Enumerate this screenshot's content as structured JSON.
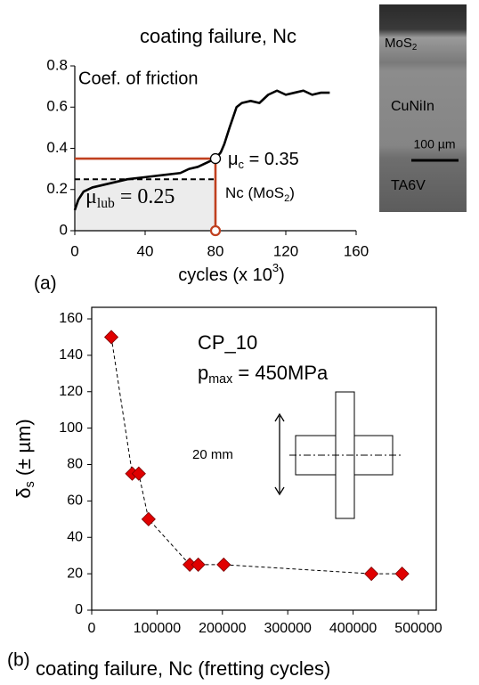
{
  "chart_data": [
    {
      "type": "line",
      "title": "coating failure, Nc",
      "y_label": "Coef. of friction",
      "x_label": [
        "cycles (x 10",
        {
          "text": "3",
          "script": "sup"
        },
        ")"
      ],
      "panel_label": "(a)",
      "xlim": [
        0,
        160
      ],
      "xticks": [
        0,
        40,
        80,
        120,
        160
      ],
      "ylim": [
        0,
        0.8
      ],
      "yticks": [
        0,
        0.2,
        0.4,
        0.6,
        0.8
      ],
      "x": [
        0,
        2,
        5,
        10,
        20,
        30,
        40,
        50,
        60,
        65,
        70,
        75,
        80,
        83,
        85,
        88,
        90,
        92,
        95,
        100,
        105,
        110,
        115,
        120,
        125,
        130,
        135,
        140,
        145
      ],
      "values": [
        0.1,
        0.15,
        0.19,
        0.21,
        0.23,
        0.25,
        0.26,
        0.27,
        0.28,
        0.3,
        0.31,
        0.33,
        0.35,
        0.38,
        0.42,
        0.5,
        0.55,
        0.6,
        0.62,
        0.63,
        0.62,
        0.66,
        0.68,
        0.66,
        0.67,
        0.68,
        0.66,
        0.67,
        0.67
      ],
      "color": "#000000",
      "failure": {
        "x": 80,
        "y": 0.35,
        "color": "#c0401f",
        "label": [
          "μ",
          {
            "text": "c",
            "script": "sub"
          },
          " = 0.35"
        ],
        "marker_label": [
          "Nc (MoS",
          {
            "text": "2",
            "script": "sub"
          },
          ")"
        ]
      },
      "lubrication": {
        "y": 0.25,
        "label": [
          "μ",
          {
            "text": "lub",
            "script": "sub"
          },
          " = 0.25"
        ]
      },
      "inset": {
        "coating": [
          "MoS",
          {
            "text": "2",
            "script": "sub"
          }
        ],
        "interlayer": "CuNiIn",
        "scale": "100 µm",
        "substrate": "TA6V"
      }
    },
    {
      "type": "scatter",
      "x_label": "coating failure, Nc (fretting cycles)",
      "y_label": [
        "δ",
        {
          "text": "s",
          "script": "sub"
        },
        " (± µm)"
      ],
      "panel_label": "(b)",
      "xlim": [
        0,
        500000
      ],
      "xticks": [
        0,
        100000,
        200000,
        300000,
        400000,
        500000
      ],
      "ylim": [
        0,
        160
      ],
      "yticks": [
        0,
        20,
        40,
        60,
        80,
        100,
        120,
        140,
        160
      ],
      "x": [
        30000,
        62000,
        72000,
        87000,
        150000,
        163000,
        202000,
        428000,
        475000
      ],
      "values": [
        150,
        75,
        75,
        50,
        25,
        25,
        25,
        20,
        20
      ],
      "color": "#e00000",
      "specimen": "CP_10",
      "pressure": [
        "p",
        {
          "text": "max",
          "script": "sub"
        },
        " = 450MPa"
      ],
      "dimension": "20 mm"
    }
  ]
}
